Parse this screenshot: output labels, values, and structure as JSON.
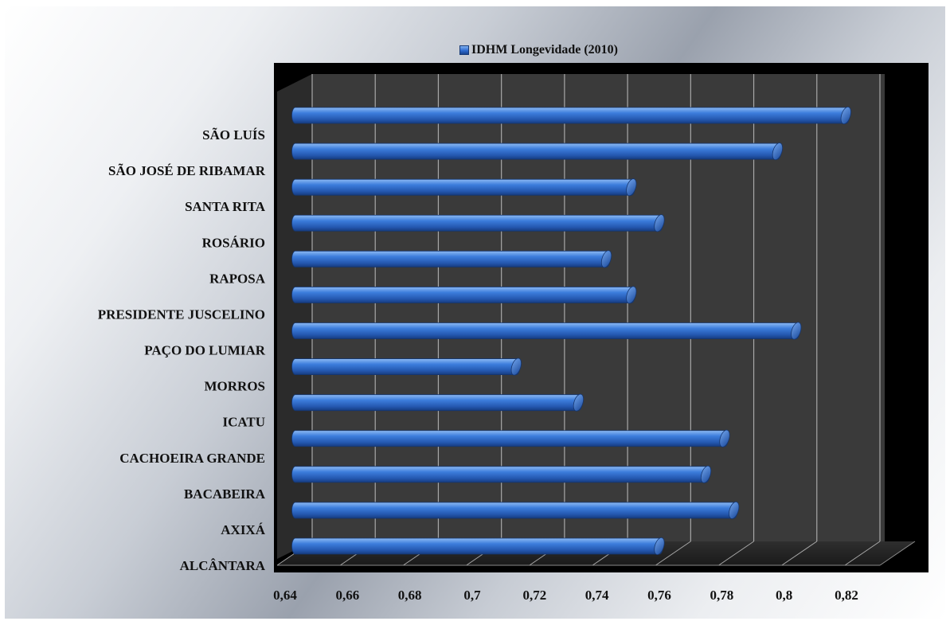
{
  "chart_data": {
    "type": "bar",
    "orientation": "horizontal",
    "style": "3d-cylinder",
    "series": [
      {
        "name": "IDHM Longevidade (2010)",
        "color": "#2f6fd0",
        "values": [
          0.757,
          0.781,
          0.772,
          0.778,
          0.731,
          0.711,
          0.801,
          0.748,
          0.74,
          0.757,
          0.748,
          0.795,
          0.817
        ]
      }
    ],
    "categories": [
      "ALCÂNTARA",
      "AXIXÁ",
      "BACABEIRA",
      "CACHOEIRA GRANDE",
      "ICATU",
      "MORROS",
      "PAÇO DO LUMIAR",
      "PRESIDENTE JUSCELINO",
      "RAPOSA",
      "ROSÁRIO",
      "SANTA RITA",
      "SÃO JOSÉ DE RIBAMAR",
      "SÃO LUÍS"
    ],
    "x_ticks": [
      "0,64",
      "0,66",
      "0,68",
      "0,7",
      "0,72",
      "0,74",
      "0,76",
      "0,78",
      "0,8",
      "0,82"
    ],
    "xlim": [
      0.64,
      0.82
    ],
    "grid": true,
    "legend_position": "top"
  },
  "colors": {
    "plot_back_wall": "#3a3a3a",
    "plot_frame": "#000000",
    "gridline": "#a8a8a8",
    "bar": "#2f6fd0"
  }
}
